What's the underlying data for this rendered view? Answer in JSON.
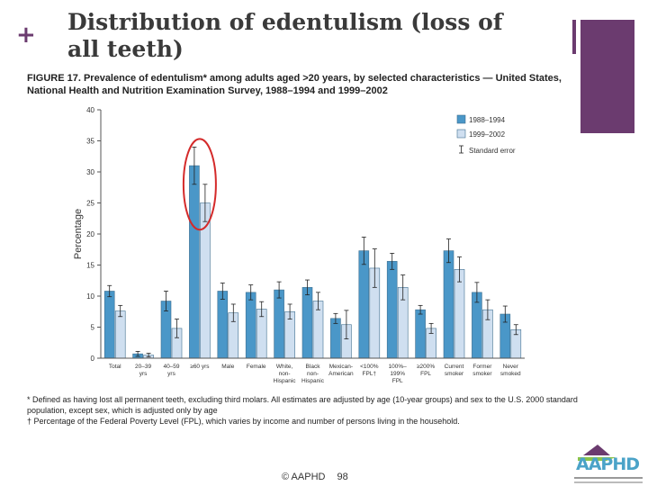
{
  "slide": {
    "title": "Distribution of edentulism (loss of all teeth)",
    "footer_copyright": "© AAPHD",
    "page_number": "98",
    "accent_color": "#6b3b6f"
  },
  "figure": {
    "caption": "FIGURE 17. Prevalence of edentulism* among adults aged >20 years, by selected characteristics — United States, National Health and Nutrition Examination Survey, 1988–1994 and 1999–2002",
    "footnotes": [
      "* Defined as having lost all permanent teeth, excluding third molars. All estimates are adjusted by age (10-year groups) and sex to the U.S. 2000 standard",
      "  population, except sex, which is adjusted only by age",
      "† Percentage of the Federal Poverty Level (FPL), which varies by income and number of persons living in the household."
    ]
  },
  "logo": {
    "text": "AAPHD"
  },
  "chart_data": {
    "type": "bar",
    "ylabel": "Percentage",
    "xlabel": "",
    "ylim": [
      0,
      40
    ],
    "yticks": [
      0,
      5,
      10,
      15,
      20,
      25,
      30,
      35,
      40
    ],
    "legend_position": "top-right",
    "categories": [
      "Total",
      "20–39 yrs",
      "40–59 yrs",
      "≥60 yrs",
      "Male",
      "Female",
      "White, non-Hispanic",
      "Black non-Hispanic",
      "Mexican-American",
      "<100% FPL†",
      "100%–199% FPL",
      "≥200% FPL",
      "Current smoker",
      "Former smoker",
      "Never smoked"
    ],
    "category_lines": [
      [
        "Total"
      ],
      [
        "20–39",
        "yrs"
      ],
      [
        "40–59",
        "yrs"
      ],
      [
        "≥60 yrs"
      ],
      [
        "Male"
      ],
      [
        "Female"
      ],
      [
        "White,",
        "non-",
        "Hispanic"
      ],
      [
        "Black",
        "non-",
        "Hispanic"
      ],
      [
        "Mexican-",
        "American"
      ],
      [
        "<100%",
        "FPL†"
      ],
      [
        "100%–",
        "199%",
        "FPL"
      ],
      [
        "≥200%",
        "FPL"
      ],
      [
        "Current",
        "smoker"
      ],
      [
        "Former",
        "smoker"
      ],
      [
        "Never",
        "smoked"
      ]
    ],
    "series": [
      {
        "name": "1988–1994",
        "color": "#4a97c8",
        "values": [
          10.8,
          0.7,
          9.2,
          31.0,
          10.8,
          10.6,
          11.0,
          11.4,
          6.4,
          17.3,
          15.6,
          7.8,
          17.3,
          10.6,
          7.1
        ],
        "error": [
          0.9,
          0.4,
          1.6,
          3.0,
          1.3,
          1.2,
          1.3,
          1.2,
          0.8,
          2.2,
          1.3,
          0.7,
          1.9,
          1.6,
          1.3
        ]
      },
      {
        "name": "1999–2002",
        "color": "#cfdff0",
        "values": [
          7.6,
          0.5,
          4.8,
          25.0,
          7.3,
          7.9,
          7.5,
          9.2,
          5.4,
          14.5,
          11.4,
          4.8,
          14.3,
          7.8,
          4.6
        ],
        "error": [
          0.9,
          0.3,
          1.5,
          3.0,
          1.4,
          1.2,
          1.2,
          1.4,
          2.3,
          3.1,
          2.0,
          0.8,
          2.0,
          1.6,
          0.8
        ]
      }
    ],
    "legend_extra": "Standard error",
    "annotation": "≥60 yrs bars circled in red",
    "annotation_color": "#d42a2a"
  }
}
